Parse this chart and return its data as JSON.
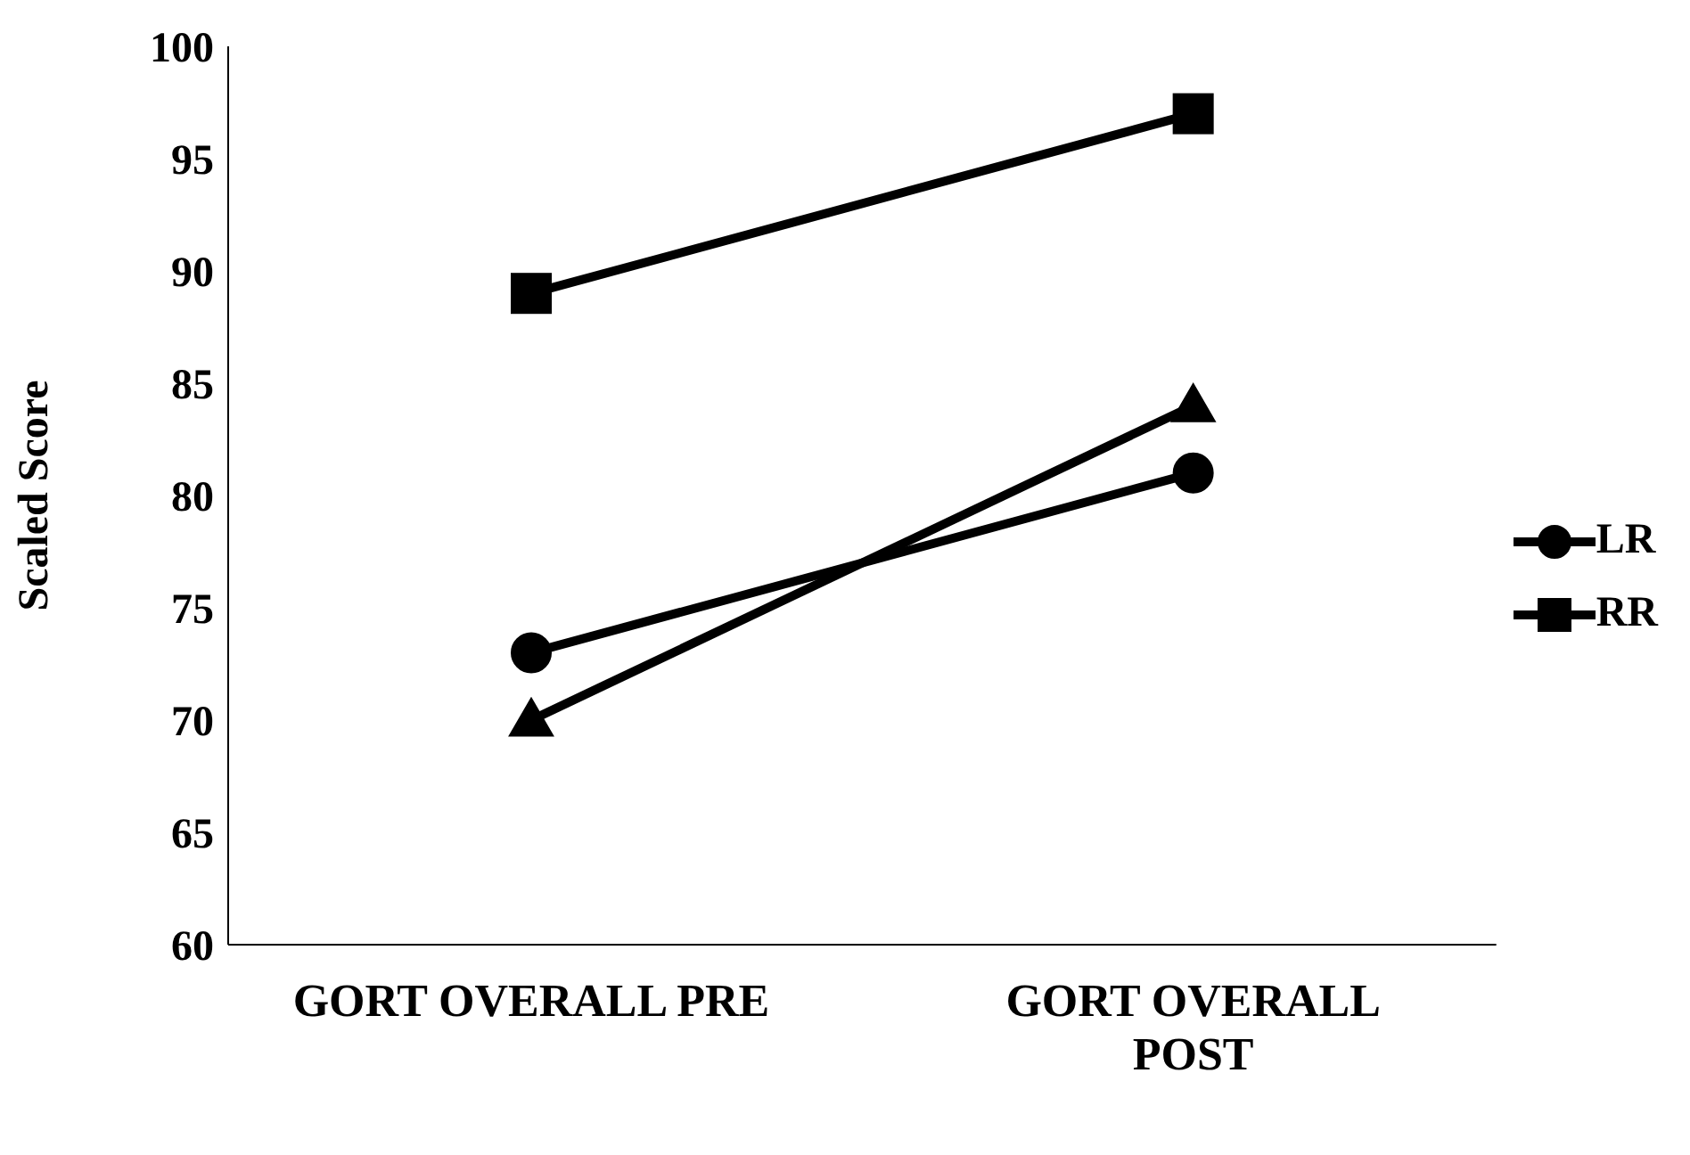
{
  "chart_data": {
    "type": "line",
    "ylabel": "Scaled Score",
    "categories": [
      "GORT OVERALL PRE",
      "GORT OVERALL POST"
    ],
    "series": [
      {
        "name": "LR",
        "color": "#000000",
        "marker": "circle",
        "values": [
          73,
          81
        ]
      },
      {
        "name": "RR",
        "color": "#000000",
        "marker": "square",
        "values": [
          89,
          97
        ]
      },
      {
        "color": "#000000",
        "marker": "triangle",
        "values": [
          70,
          84
        ]
      }
    ],
    "ylim": [
      60,
      100
    ],
    "yticks": [
      60,
      65,
      70,
      75,
      80,
      85,
      90,
      95,
      100
    ],
    "grid": false,
    "legend": "right",
    "line_style": "solid"
  }
}
